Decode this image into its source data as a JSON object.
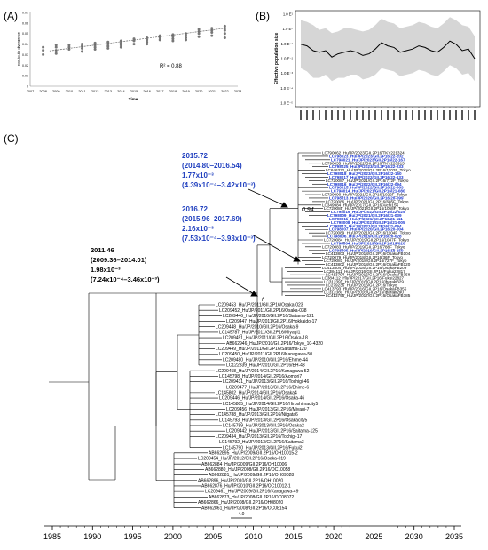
{
  "panels": {
    "a": "(A)",
    "b": "(B)",
    "c": "(C)"
  },
  "chart_data": [
    {
      "type": "scatter",
      "panel": "(A)",
      "ylabel": "root-to-tip divergence",
      "xlabel": "Time",
      "yticks": [
        "0",
        "0.01",
        "0.02",
        "0.03",
        "0.04",
        "0.05",
        "0.06",
        "0.07"
      ],
      "ylim": [
        0,
        0.07
      ],
      "xticks": [
        "2007",
        "2008",
        "2009",
        "2010",
        "2011",
        "2012",
        "2013",
        "2014",
        "2015",
        "2016",
        "2017",
        "2018",
        "2019",
        "2020",
        "2021",
        "2022",
        "2023"
      ],
      "xlim": [
        2007,
        2023
      ],
      "annotation": "R² = 0.88",
      "trendline": {
        "x": [
          2008.5,
          2022
        ],
        "y": [
          0.0335,
          0.055
        ]
      },
      "points": [
        [
          2008.0,
          0.03
        ],
        [
          2008.0,
          0.034
        ],
        [
          2008.0,
          0.037
        ],
        [
          2009.0,
          0.034
        ],
        [
          2009.0,
          0.037
        ],
        [
          2009.0,
          0.039
        ],
        [
          2009.0,
          0.031
        ],
        [
          2010.0,
          0.035
        ],
        [
          2010.0,
          0.037
        ],
        [
          2010.0,
          0.039
        ],
        [
          2011.0,
          0.036
        ],
        [
          2011.0,
          0.038
        ],
        [
          2011.0,
          0.04
        ],
        [
          2011.0,
          0.033
        ],
        [
          2012.0,
          0.037
        ],
        [
          2012.0,
          0.039
        ],
        [
          2012.0,
          0.041
        ],
        [
          2012.0,
          0.035
        ],
        [
          2013.0,
          0.038
        ],
        [
          2013.0,
          0.04
        ],
        [
          2013.0,
          0.042
        ],
        [
          2013.0,
          0.036
        ],
        [
          2014.0,
          0.039
        ],
        [
          2014.0,
          0.041
        ],
        [
          2014.0,
          0.043
        ],
        [
          2014.0,
          0.037
        ],
        [
          2015.0,
          0.04
        ],
        [
          2015.0,
          0.043
        ],
        [
          2015.0,
          0.045
        ],
        [
          2016.0,
          0.042
        ],
        [
          2016.0,
          0.044
        ],
        [
          2016.0,
          0.046
        ],
        [
          2016.0,
          0.04
        ],
        [
          2017.0,
          0.044
        ],
        [
          2017.0,
          0.046
        ],
        [
          2017.0,
          0.048
        ],
        [
          2018.0,
          0.045
        ],
        [
          2018.0,
          0.047
        ],
        [
          2018.0,
          0.049
        ],
        [
          2018.0,
          0.043
        ],
        [
          2019.0,
          0.046
        ],
        [
          2019.0,
          0.048
        ],
        [
          2019.0,
          0.05
        ],
        [
          2019.0,
          0.044
        ],
        [
          2020.0,
          0.047
        ],
        [
          2020.0,
          0.05
        ],
        [
          2020.0,
          0.052
        ],
        [
          2020.0,
          0.054
        ],
        [
          2021.0,
          0.048
        ],
        [
          2021.0,
          0.051
        ],
        [
          2021.0,
          0.053
        ],
        [
          2021.0,
          0.055
        ],
        [
          2022.0,
          0.05
        ],
        [
          2022.0,
          0.053
        ],
        [
          2022.0,
          0.055
        ],
        [
          2022.0,
          0.057
        ],
        [
          2022.0,
          0.046
        ]
      ]
    },
    {
      "type": "line",
      "panel": "(B)",
      "ylabel": "Effective population size",
      "yscale": "log",
      "yticks": [
        "1.0 E¹",
        "1.0 E⁰",
        "1.0 E⁻¹",
        "1.0 E⁻²",
        "1.0 E⁻³",
        "1.0 E⁻⁴",
        "1.0 E⁻⁵"
      ],
      "ylog_range": [
        -5,
        1
      ],
      "x": [
        0,
        1,
        2,
        3,
        4,
        5,
        6,
        7,
        8,
        9,
        10,
        11,
        12,
        13,
        14,
        15,
        16,
        17,
        18,
        19,
        20,
        21,
        22,
        23,
        24,
        25,
        26,
        27,
        28
      ],
      "median": [
        -1.1,
        -1.2,
        -1.5,
        -1.6,
        -1.5,
        -1.9,
        -1.7,
        -1.6,
        -1.5,
        -1.6,
        -1.8,
        -1.7,
        -1.4,
        -1.0,
        -1.2,
        -1.3,
        -1.6,
        -1.5,
        -1.4,
        -1.2,
        -1.3,
        -1.5,
        -1.6,
        -1.3,
        -0.9,
        -1.1,
        -1.5,
        -1.4,
        -2.0
      ],
      "upper": [
        0.4,
        0.3,
        0.1,
        -0.2,
        -0.1,
        -0.4,
        -0.3,
        -0.1,
        -0.1,
        -0.2,
        -0.3,
        -0.2,
        0.1,
        0.5,
        0.3,
        0.2,
        -0.1,
        0.0,
        0.1,
        0.3,
        0.2,
        0.0,
        -0.1,
        0.2,
        0.6,
        0.4,
        0.1,
        0.0,
        -0.6
      ],
      "lower": [
        -2.6,
        -2.8,
        -3.2,
        -3.2,
        -3.0,
        -3.4,
        -3.2,
        -3.2,
        -3.0,
        -3.0,
        -3.3,
        -3.2,
        -3.0,
        -2.6,
        -2.7,
        -2.8,
        -3.1,
        -3.0,
        -2.9,
        -2.7,
        -2.8,
        -3.0,
        -3.1,
        -2.8,
        -2.4,
        -2.6,
        -3.0,
        -2.9,
        -3.4
      ]
    },
    {
      "type": "tree",
      "panel": "(C)",
      "axis_ticks": [
        "1985",
        "1990",
        "1995",
        "2000",
        "2005",
        "2010",
        "2015",
        "2020",
        "2025",
        "2030",
        "2035"
      ],
      "axis_range": [
        1985,
        2035
      ],
      "scale_bar_label": "4.0",
      "node_labels": {
        "root_f": "f",
        "support": "0.94"
      },
      "annotations": [
        {
          "id": "n1",
          "lines": [
            "2015.72",
            "(2014.80–2016.54)",
            "1.77x10⁻³",
            "(4.39x10⁻⁴–3.42x10⁻³)"
          ],
          "color": "#1f3fbf"
        },
        {
          "id": "n2",
          "lines": [
            "2016.72",
            "(2015.96–2017.69)",
            "2.16x10⁻³",
            "(7.53x10⁻⁴–3.93x10⁻³)"
          ],
          "color": "#1f3fbf"
        },
        {
          "id": "n3",
          "lines": [
            "2011.46",
            "(2009.36–2014.01)",
            "1.98x10⁻³",
            "(7.24x10⁻⁴–3.46x10⁻³)"
          ],
          "color": "#000000"
        }
      ],
      "clade_top": [
        {
          "t": "LC790062_Hu/JP/2023/GII.2P16/TKY221324",
          "b": false
        },
        {
          "t": "LC798023_Hu/JP/2023/GII.2P16/22-202",
          "b": true
        },
        {
          "t": "LC798021_Hu/JP/2023/GII.2P16/22-167",
          "b": true
        },
        {
          "t": "LC790055_Hu/JP/2022/GII.2P16/TKY220913",
          "b": false
        },
        {
          "t": "LC798025_Hu/JP/2023/GII.2P16/22-233",
          "b": true
        },
        {
          "t": "LC646332_Hu/JP/2022/GII.2P16/1102F_Tokyo",
          "b": false
        },
        {
          "t": "LC798018_Hu/JP/2023/GII.2P16/22-150",
          "b": true
        },
        {
          "t": "LC798017_Hu/JP/2022/GII.2P16/22-133",
          "b": true
        },
        {
          "t": "LC720087_Hu/JP/2021/GII.2P16/772F_Tokyo",
          "b": false
        },
        {
          "t": "LC798016_Hu/JP/2022/GII.2P16/22-094",
          "b": true
        },
        {
          "t": "LC798015_Hu/JP/2022/GII.2P16/22-063",
          "b": true
        },
        {
          "t": "LC798014_Hu/JP/2021/GII.2P16/21-080",
          "b": true
        },
        {
          "t": "LC720090_Hu/JP/2021/GII.2P16/1022F_Tokyo",
          "b": false
        },
        {
          "t": "LC798013_Hu/JP/2020/GII.2P16/20-099",
          "b": true
        },
        {
          "t": "LC720086_Hu/JP/2021/GII.2P16/685F_Tokyo",
          "b": false
        },
        {
          "t": "LC349984_Hu/JP/2017/GII.2P16/Aichi156",
          "b": false
        },
        {
          "t": "LC720085_Hu/JP/2021/GII.2P16/1058F_Tokyo",
          "b": false
        },
        {
          "t": "LC798019_Hu/JP/2022/GII.2P16/22-025",
          "b": true
        },
        {
          "t": "LC798009_Hu/JP/2021/GII.2P16/21-039",
          "b": true
        },
        {
          "t": "LC798011_Hu/JP/2021/GII.2P16/21-111",
          "b": true
        },
        {
          "t": "LC798008_Hu/JP/2021/GII.2P16/21-005",
          "b": true
        },
        {
          "t": "LC798012_Hu/JP/2021/GII.2P16/21-094",
          "b": true
        },
        {
          "t": "LC798007_Hu/JP/2020/GII.2P16/20-004",
          "b": true
        },
        {
          "t": "LC720089_Hu/JP/2021/GII.2P16/1104F_Tokyo",
          "b": false
        },
        {
          "t": "LC798006_Hu/JP/2019/GII.2P16/20-028",
          "b": true
        },
        {
          "t": "LC720084_Hu/JP/2019/GII.2P16/1047F_Tokyo",
          "b": false
        },
        {
          "t": "LC798004_Hu/JP/2019/GII.2P16/19-020",
          "b": true
        },
        {
          "t": "LC720083_Hu/JP/2019/GII.2P16/788F_Tokyo",
          "b": false
        },
        {
          "t": "LC798005_Hu/JP/2019/GII.2P16/19-159",
          "b": true
        },
        {
          "t": "LC413803_Hu/JP/2018/GII.2P16/OsakaFB104",
          "b": false
        },
        {
          "t": "LC720079_Hu/JP/2018/GII.2P16/36F_Tokyo",
          "b": false
        },
        {
          "t": "LC720081_Hu/JP/2018/GII.2P16/727F_Tokyo",
          "b": false
        },
        {
          "t": "LC413802_Hu/JP/2018/GII.2P16/OsakaFB120",
          "b": false
        },
        {
          "t": "LC413804_Hu/JP/2018/GII.2P16/OsakaFB209",
          "b": false
        },
        {
          "t": "LC384111_Hu/JP/2016/GII.2P16/Fukui22817",
          "b": false
        },
        {
          "t": "LC413794_Hu/JP/2016/GII.2P16/OsakaFB358",
          "b": false
        },
        {
          "t": "LC384112_Hu/JP/2017/GII.2P16/Fukui22827",
          "b": false
        },
        {
          "t": "LC312391_Hu/JP/2016/GII.2P16/Ibaraki329",
          "b": false
        },
        {
          "t": "LC279236_Hu/JP/2016/GII.2P16/Tokyo",
          "b": false
        },
        {
          "t": "LC413793_Hu/JP/2016/GII.2P16/OsakaFB355",
          "b": false
        },
        {
          "t": "LC312380_Hu/JP/2016/GII.2P16/Ibaraki290",
          "b": false
        },
        {
          "t": "LC413795_Hu/JP/2017/GII.2P16/OsakaFB385",
          "b": false
        }
      ],
      "clade_bottom": [
        "LC209453_Hu/JP/2011/GII.2P16/Osaka-023",
        "LC209452_Hu/JP/2011/GII.2P16/Osaka-038",
        "LC209446_Hu/JP/2010/GII.2P16/Saitama-121",
        "LC209447_Hu/JP/2011/GII.2P16/Hokkaido-17",
        "LC209448_Hu/JP/2010/GII.2P16/Osaka-9",
        "LC145787_Hu/JP/2011/GII.2P16/Miyagi1",
        "LC209451_Hu/JP/2011/GII.2P16/Osaka-18",
        "AB662946_Hu/JP/2010/GII.2P16/Tokyo_10-4320",
        "LC209449_Hu/JP/2011/GII.2P16/Saitama-120",
        "LC209450_Hu/JP/2011/GII.2P16/Kanagawa-50",
        "LC209480_Hu/JP/2010/GII.2P16/Ehime-44",
        "LC122839_Hu/JP/2010/GII.2P16/EH-43",
        "LC209458_Hu/JP/2014/GII.2P16/Kanagawa-52",
        "LC145798_Hu/JP/2014/GII.2P16/Aomori7",
        "LC209431_Hu/JP/2013/GII.2P16/Tochigi-46",
        "LC209477_Hu/JP/2013/GII.2P16/Ehime-6",
        "LC145802_Hu/JP/2014/GII.2P16/Osaka4",
        "LC209446_Hu/JP/2014/GII.2P16/Osaka-46",
        "LC145805_Hu/JP/2014/GII.2P16/Hiroshimacity5",
        "LC209456_Hu/JP/2013/GII.2P16/Miyagi-7",
        "LC145788_Hu/JP/2013/GII.2P16/Niigata6",
        "LC145793_Hu/JP/2013/GII.2P16/Osakacity5",
        "LC145789_Hu/JP/2013/GII.2P16/Osaka2",
        "LC209442_Hu/JP/2013/GII.2P16/Saitama-125",
        "LC209434_Hu/JP/2013/GII.2P16/Tochigi-17",
        "LC145792_Hu/JP/2013/GII.2P16/Saitama3",
        "LC145790_Hu/JP/2013/GII.2P16/Fukui2",
        "AB662895_Hu/JP/2009/GII.2P16/OH10015-2",
        "LC209454_Hu/JP/2012/GII.2P16/Osaka-019",
        "AB662884_Hu/JP/2009/GII.2P16/OH10006",
        "AB662880_Hu/JP/2008/GII.2P16/OC10058",
        "AB662881_Hu/JP/2009/GII.2P16/OH09028",
        "AB662896_Hu/JP/2010/GII.2P16/OH10020",
        "AB662876_Hu/JP/2010/GII.2P16/OC10012-1",
        "LC209461_Hu/JP/2009/GII.2P16/Kanagawa-49",
        "AB662873_Hu/JP/2008/GII.2P16/OC08072",
        "AB662866_Hu/JP/2008/GII.2P16/OH08020",
        "AB662861_Hu/JP/2008/GII.2P16/OC08154"
      ]
    }
  ]
}
